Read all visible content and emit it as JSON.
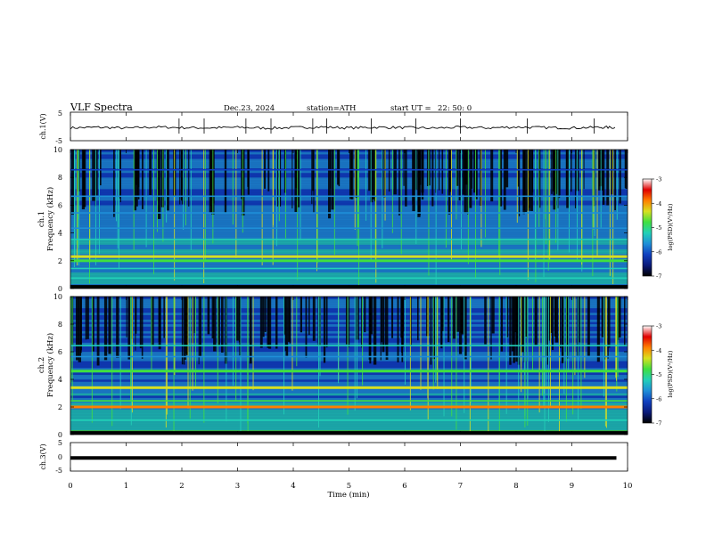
{
  "header": {
    "title": "VLF  Spectra",
    "date": "Dec.23, 2024",
    "station": "station=ATH",
    "start_label": "start  UT  =",
    "start_value": "22: 50: 0"
  },
  "colors": {
    "trace": "#000000",
    "cmap": [
      "#000000",
      "#0a1a7a",
      "#1040c0",
      "#1f8fd8",
      "#22d0b8",
      "#40e040",
      "#d8e020",
      "#ff8000",
      "#e00000",
      "#ffffff"
    ]
  },
  "chart_data": [
    {
      "type": "line",
      "panel": "ch1-waveform",
      "ylabel": "ch.1(V)",
      "ylim": [
        -5,
        5
      ],
      "yticks": [
        "5",
        "-5"
      ],
      "x": [
        0,
        0.5,
        1,
        1.5,
        2,
        2.5,
        3,
        3.5,
        4,
        4.5,
        5,
        5.5,
        6,
        6.5,
        7,
        7.5,
        8,
        8.5,
        9,
        9.5,
        9.8
      ],
      "y": [
        -0.5,
        -0.3,
        -0.6,
        -0.2,
        -0.4,
        -0.5,
        -0.3,
        -0.6,
        -0.4,
        -0.2,
        -0.5,
        -0.3,
        -0.4,
        -0.6,
        -0.3,
        -0.5,
        -0.2,
        -0.4,
        -0.5,
        -0.3,
        -0.4
      ],
      "spikes_x": [
        1.95,
        2.4,
        3.15,
        3.6,
        4.35,
        4.6,
        5.4,
        6.2,
        7.0,
        8.2,
        9.4
      ]
    },
    {
      "type": "heatmap",
      "panel": "ch1-spectrogram",
      "ylabel": "Frequency  (kHz)",
      "channel_label": "ch.1",
      "ylim": [
        0,
        10
      ],
      "yticks": [
        "0",
        "2",
        "4",
        "6",
        "8",
        "10"
      ],
      "bands_khz": [
        {
          "f": 0.1,
          "level": 0.0
        },
        {
          "f": 0.7,
          "level": 0.55
        },
        {
          "f": 1.4,
          "level": 0.5
        },
        {
          "f": 2.0,
          "level": 0.65
        },
        {
          "f": 2.3,
          "level": 0.7
        },
        {
          "f": 3.5,
          "level": 0.45
        },
        {
          "f": 4.3,
          "level": 0.4
        },
        {
          "f": 5.4,
          "level": 0.35
        },
        {
          "f": 6.6,
          "level": 0.4
        },
        {
          "f": 8.5,
          "level": 0.3
        }
      ],
      "colorbar": {
        "label": "log(PSD)(V²/Hz)",
        "ticks": [
          "-3",
          "-4",
          "-5",
          "-6",
          "-7"
        ],
        "range": [
          -7,
          -3
        ]
      }
    },
    {
      "type": "heatmap",
      "panel": "ch2-spectrogram",
      "ylabel": "Frequency  (kHz)",
      "channel_label": "ch.2",
      "ylim": [
        0,
        10
      ],
      "yticks": [
        "0",
        "2",
        "4",
        "6",
        "8",
        "10"
      ],
      "bands_khz": [
        {
          "f": 0.1,
          "level": 0.0
        },
        {
          "f": 1.0,
          "level": 0.55
        },
        {
          "f": 2.0,
          "level": 0.85
        },
        {
          "f": 2.4,
          "level": 0.6
        },
        {
          "f": 3.4,
          "level": 0.7
        },
        {
          "f": 4.6,
          "level": 0.65
        },
        {
          "f": 5.6,
          "level": 0.35
        },
        {
          "f": 6.4,
          "level": 0.45
        }
      ],
      "colorbar": {
        "label": "log(PSD)(V²/Hz)",
        "ticks": [
          "-3",
          "-4",
          "-5",
          "-6",
          "-7"
        ],
        "range": [
          -7,
          -3
        ]
      }
    },
    {
      "type": "line",
      "panel": "ch3-waveform",
      "ylabel": "ch.3(V)",
      "ylim": [
        -5,
        5
      ],
      "yticks": [
        "5",
        "0",
        "-5"
      ],
      "x": [
        0,
        9.8
      ],
      "y": [
        -0.4,
        -0.4
      ]
    }
  ],
  "xaxis": {
    "label": "Time  (min)",
    "range": [
      0,
      10
    ],
    "ticks": [
      "0",
      "1",
      "2",
      "3",
      "4",
      "5",
      "6",
      "7",
      "8",
      "9",
      "10"
    ]
  }
}
